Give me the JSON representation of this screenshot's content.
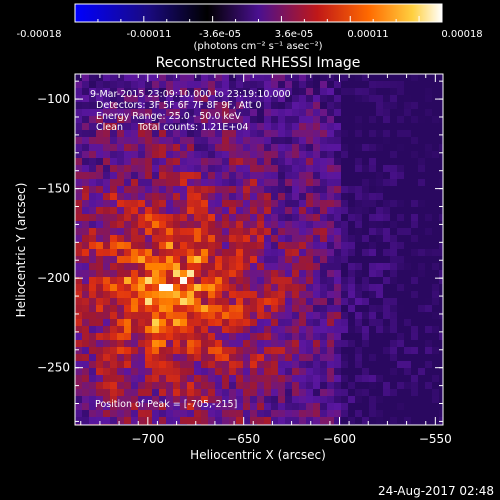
{
  "colorbar": {
    "ticks": [
      "-0.00018",
      "-0.00011",
      "-3.6e-05",
      "3.6e-05",
      "0.00011",
      "0.00018"
    ],
    "units_label": "(photons cm⁻² s⁻¹ asec⁻²)",
    "colors": [
      "#0000ff",
      "#1a0a80",
      "#000000",
      "#4a1090",
      "#c01818",
      "#ff6a00",
      "#ffd040",
      "#ffffff"
    ]
  },
  "chart_data": {
    "type": "heatmap",
    "title": "Reconstructed RHESSI Image",
    "xlabel": "Heliocentric X (arcsec)",
    "ylabel": "Heliocentric Y (arcsec)",
    "xlim": [
      -738,
      -546
    ],
    "ylim": [
      -282,
      -86
    ],
    "x_ticks": [
      -700,
      -650,
      -600,
      -550
    ],
    "y_ticks": [
      -100,
      -150,
      -200,
      -250
    ],
    "annotations": [
      "9-Mar-2015 23:09:10.000 to 23:19:10.000",
      "Detectors: 3F 5F 6F 7F 8F 9F, Att 0",
      "Energy Range: 25.0 - 50.0 keV",
      "Clean     Total counts: 1.21E+04"
    ],
    "peak_label": "Position of Peak = [-705,-215]",
    "peak": [
      -705,
      -215
    ]
  },
  "timestamp": "24-Aug-2017 02:48"
}
